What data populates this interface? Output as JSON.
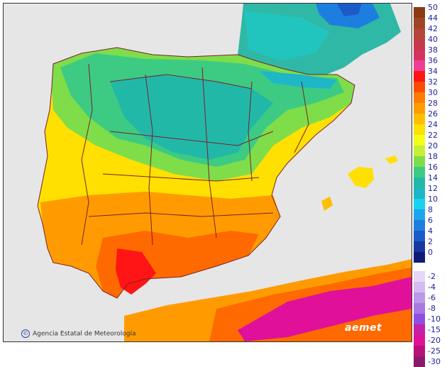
{
  "map": {
    "credit": "Agencia Estatal de Meteorología",
    "brand": "aemet",
    "colors": {
      "sea": "#e6e6e6",
      "border": "#7a1f2b",
      "frame": "#333333"
    }
  },
  "legend": {
    "positive": [
      {
        "label": "50",
        "color": "#8b3a12"
      },
      {
        "label": "44",
        "color": "#a04426"
      },
      {
        "label": "42",
        "color": "#b5443a"
      },
      {
        "label": "40",
        "color": "#c43a4a"
      },
      {
        "label": "38",
        "color": "#d4335e"
      },
      {
        "label": "36",
        "color": "#ef3e95"
      },
      {
        "label": "34",
        "color": "#ff1515"
      },
      {
        "label": "32",
        "color": "#ff4a00"
      },
      {
        "label": "30",
        "color": "#ff7c00"
      },
      {
        "label": "28",
        "color": "#ff9b00"
      },
      {
        "label": "26",
        "color": "#ffbe00"
      },
      {
        "label": "24",
        "color": "#ffe000"
      },
      {
        "label": "22",
        "color": "#f2ff1a"
      },
      {
        "label": "20",
        "color": "#c6ef38"
      },
      {
        "label": "18",
        "color": "#7fdd4a"
      },
      {
        "label": "16",
        "color": "#3dcb83"
      },
      {
        "label": "14",
        "color": "#22b8a8"
      },
      {
        "label": "12",
        "color": "#1eb7c8"
      },
      {
        "label": "10",
        "color": "#18d3f0"
      },
      {
        "label": "8",
        "color": "#1da6ef"
      },
      {
        "label": "6",
        "color": "#1e7ee0"
      },
      {
        "label": "4",
        "color": "#1d5ac8"
      },
      {
        "label": "2",
        "color": "#173aa0"
      },
      {
        "label": "0",
        "color": "#101a78"
      }
    ],
    "negative": [
      {
        "label": "-2",
        "color": "#e6d6f7"
      },
      {
        "label": "-4",
        "color": "#d3baf0"
      },
      {
        "label": "-6",
        "color": "#bb98ea"
      },
      {
        "label": "-8",
        "color": "#a878e3"
      },
      {
        "label": "-10",
        "color": "#8e4fe0"
      },
      {
        "label": "-15",
        "color": "#c61fa8"
      },
      {
        "label": "-20",
        "color": "#e0109a"
      },
      {
        "label": "-25",
        "color": "#b8107a"
      },
      {
        "label": "-30",
        "color": "#8b1a6a"
      }
    ]
  }
}
